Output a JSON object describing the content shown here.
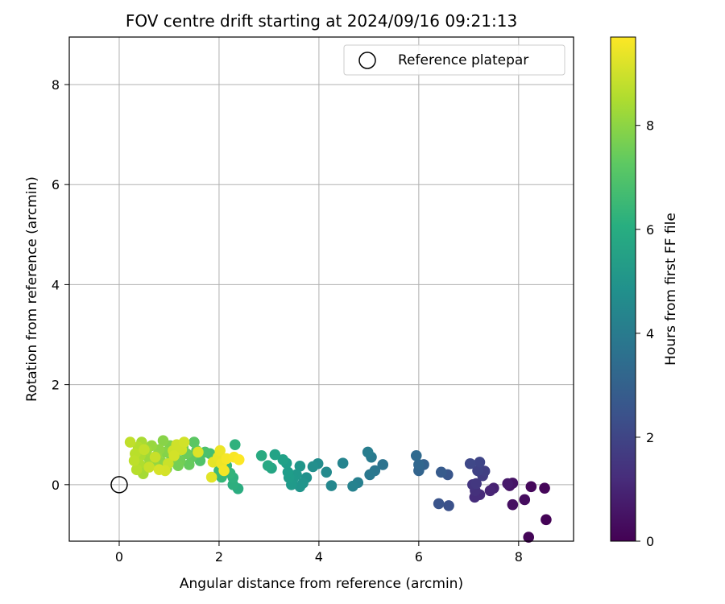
{
  "chart_data": {
    "type": "scatter",
    "title": "FOV centre drift starting at 2024/09/16 09:21:13",
    "xlabel": "Angular distance from reference (arcmin)",
    "ylabel": "Rotation from reference (arcmin)",
    "xlim": [
      -1.0,
      9.1
    ],
    "ylim": [
      -1.13,
      8.95
    ],
    "xticks": [
      0,
      2,
      4,
      6,
      8
    ],
    "yticks": [
      0,
      2,
      4,
      6,
      8
    ],
    "grid": true,
    "legend": {
      "position": "top-right",
      "entries": [
        "Reference platepar"
      ]
    },
    "reference_point": {
      "label": "Reference platepar",
      "x": 0,
      "y": 0,
      "marker": "hollow-circle"
    },
    "colorbar": {
      "label": "Hours from first FF file",
      "colormap": "viridis",
      "range": [
        0,
        9.7
      ],
      "ticks": [
        0,
        2,
        4,
        6,
        8
      ]
    },
    "points": [
      {
        "x": 8.55,
        "y": -0.7,
        "c": 0.05
      },
      {
        "x": 8.2,
        "y": -1.05,
        "c": 0.1
      },
      {
        "x": 8.52,
        "y": -0.07,
        "c": 0.15
      },
      {
        "x": 8.25,
        "y": -0.04,
        "c": 0.2
      },
      {
        "x": 8.12,
        "y": -0.3,
        "c": 0.3
      },
      {
        "x": 7.88,
        "y": -0.4,
        "c": 0.4
      },
      {
        "x": 7.88,
        "y": 0.03,
        "c": 0.5
      },
      {
        "x": 7.82,
        "y": -0.02,
        "c": 0.55
      },
      {
        "x": 7.78,
        "y": 0.02,
        "c": 0.7
      },
      {
        "x": 7.5,
        "y": -0.07,
        "c": 0.9
      },
      {
        "x": 7.43,
        "y": -0.12,
        "c": 1.0
      },
      {
        "x": 7.22,
        "y": -0.2,
        "c": 1.15
      },
      {
        "x": 7.12,
        "y": -0.25,
        "c": 1.25
      },
      {
        "x": 7.13,
        "y": -0.12,
        "c": 1.35
      },
      {
        "x": 7.08,
        "y": 0.0,
        "c": 1.5
      },
      {
        "x": 7.15,
        "y": 0.02,
        "c": 1.6
      },
      {
        "x": 7.28,
        "y": 0.18,
        "c": 1.7
      },
      {
        "x": 7.32,
        "y": 0.27,
        "c": 1.8
      },
      {
        "x": 7.18,
        "y": 0.28,
        "c": 1.9
      },
      {
        "x": 7.22,
        "y": 0.45,
        "c": 2.0
      },
      {
        "x": 7.03,
        "y": 0.42,
        "c": 2.1
      },
      {
        "x": 6.6,
        "y": -0.42,
        "c": 2.4
      },
      {
        "x": 6.4,
        "y": -0.38,
        "c": 2.5
      },
      {
        "x": 6.58,
        "y": 0.2,
        "c": 2.6
      },
      {
        "x": 6.45,
        "y": 0.25,
        "c": 2.75
      },
      {
        "x": 6.1,
        "y": 0.4,
        "c": 3.0
      },
      {
        "x": 6.0,
        "y": 0.28,
        "c": 3.1
      },
      {
        "x": 6.0,
        "y": 0.4,
        "c": 3.2
      },
      {
        "x": 5.95,
        "y": 0.58,
        "c": 3.3
      },
      {
        "x": 5.28,
        "y": 0.4,
        "c": 3.7
      },
      {
        "x": 5.12,
        "y": 0.28,
        "c": 3.8
      },
      {
        "x": 5.02,
        "y": 0.2,
        "c": 3.9
      },
      {
        "x": 5.05,
        "y": 0.55,
        "c": 4.0
      },
      {
        "x": 4.98,
        "y": 0.65,
        "c": 4.1
      },
      {
        "x": 4.78,
        "y": 0.04,
        "c": 4.2
      },
      {
        "x": 4.68,
        "y": -0.03,
        "c": 4.3
      },
      {
        "x": 4.48,
        "y": 0.43,
        "c": 4.4
      },
      {
        "x": 4.25,
        "y": -0.02,
        "c": 4.5
      },
      {
        "x": 4.15,
        "y": 0.25,
        "c": 4.6
      },
      {
        "x": 3.98,
        "y": 0.42,
        "c": 4.7
      },
      {
        "x": 3.88,
        "y": 0.36,
        "c": 4.8
      },
      {
        "x": 3.75,
        "y": 0.14,
        "c": 4.9
      },
      {
        "x": 3.68,
        "y": 0.03,
        "c": 5.0
      },
      {
        "x": 3.62,
        "y": -0.04,
        "c": 5.05
      },
      {
        "x": 3.62,
        "y": 0.37,
        "c": 5.1
      },
      {
        "x": 3.55,
        "y": 0.2,
        "c": 5.15
      },
      {
        "x": 3.48,
        "y": 0.12,
        "c": 5.2
      },
      {
        "x": 3.45,
        "y": 0.0,
        "c": 5.25
      },
      {
        "x": 3.4,
        "y": 0.14,
        "c": 5.3
      },
      {
        "x": 3.38,
        "y": 0.25,
        "c": 5.35
      },
      {
        "x": 3.35,
        "y": 0.43,
        "c": 5.4
      },
      {
        "x": 3.28,
        "y": 0.5,
        "c": 5.5
      },
      {
        "x": 3.12,
        "y": 0.6,
        "c": 5.6
      },
      {
        "x": 3.05,
        "y": 0.33,
        "c": 5.7
      },
      {
        "x": 2.98,
        "y": 0.38,
        "c": 5.8
      },
      {
        "x": 2.85,
        "y": 0.58,
        "c": 5.9
      },
      {
        "x": 2.38,
        "y": -0.08,
        "c": 6.0
      },
      {
        "x": 2.28,
        "y": 0.0,
        "c": 6.1
      },
      {
        "x": 2.28,
        "y": 0.14,
        "c": 6.15
      },
      {
        "x": 2.32,
        "y": 0.8,
        "c": 6.2
      },
      {
        "x": 2.22,
        "y": 0.23,
        "c": 6.3
      },
      {
        "x": 2.15,
        "y": 0.38,
        "c": 6.4
      },
      {
        "x": 2.05,
        "y": 0.15,
        "c": 6.5
      },
      {
        "x": 2.0,
        "y": 0.28,
        "c": 6.6
      },
      {
        "x": 1.92,
        "y": 0.5,
        "c": 6.7
      },
      {
        "x": 1.82,
        "y": 0.62,
        "c": 6.8
      },
      {
        "x": 1.72,
        "y": 0.65,
        "c": 6.9
      },
      {
        "x": 1.62,
        "y": 0.48,
        "c": 7.0
      },
      {
        "x": 1.55,
        "y": 0.68,
        "c": 7.1
      },
      {
        "x": 1.5,
        "y": 0.85,
        "c": 7.2
      },
      {
        "x": 1.45,
        "y": 0.55,
        "c": 7.3
      },
      {
        "x": 1.4,
        "y": 0.4,
        "c": 7.4
      },
      {
        "x": 1.35,
        "y": 0.62,
        "c": 7.5
      },
      {
        "x": 1.28,
        "y": 0.75,
        "c": 7.55
      },
      {
        "x": 1.22,
        "y": 0.48,
        "c": 7.6
      },
      {
        "x": 1.18,
        "y": 0.38,
        "c": 7.65
      },
      {
        "x": 1.12,
        "y": 0.62,
        "c": 7.7
      },
      {
        "x": 1.05,
        "y": 0.52,
        "c": 7.75
      },
      {
        "x": 1.02,
        "y": 0.78,
        "c": 7.8
      },
      {
        "x": 0.95,
        "y": 0.32,
        "c": 7.85
      },
      {
        "x": 0.92,
        "y": 0.65,
        "c": 7.9
      },
      {
        "x": 0.88,
        "y": 0.88,
        "c": 7.95
      },
      {
        "x": 0.85,
        "y": 0.45,
        "c": 8.0
      },
      {
        "x": 0.8,
        "y": 0.7,
        "c": 8.05
      },
      {
        "x": 0.75,
        "y": 0.58,
        "c": 8.1
      },
      {
        "x": 0.7,
        "y": 0.4,
        "c": 8.15
      },
      {
        "x": 0.65,
        "y": 0.78,
        "c": 8.2
      },
      {
        "x": 0.6,
        "y": 0.52,
        "c": 8.25
      },
      {
        "x": 0.55,
        "y": 0.68,
        "c": 8.3
      },
      {
        "x": 0.52,
        "y": 0.35,
        "c": 8.35
      },
      {
        "x": 0.48,
        "y": 0.22,
        "c": 8.4
      },
      {
        "x": 0.45,
        "y": 0.85,
        "c": 8.45
      },
      {
        "x": 0.42,
        "y": 0.58,
        "c": 8.5
      },
      {
        "x": 0.4,
        "y": 0.42,
        "c": 8.55
      },
      {
        "x": 0.38,
        "y": 0.75,
        "c": 8.6
      },
      {
        "x": 0.35,
        "y": 0.3,
        "c": 8.65
      },
      {
        "x": 0.32,
        "y": 0.62,
        "c": 8.7
      },
      {
        "x": 0.3,
        "y": 0.48,
        "c": 8.75
      },
      {
        "x": 0.22,
        "y": 0.85,
        "c": 8.8
      },
      {
        "x": 0.5,
        "y": 0.7,
        "c": 8.85
      },
      {
        "x": 0.6,
        "y": 0.35,
        "c": 8.9
      },
      {
        "x": 0.72,
        "y": 0.55,
        "c": 8.92
      },
      {
        "x": 0.98,
        "y": 0.42,
        "c": 8.95
      },
      {
        "x": 1.08,
        "y": 0.68,
        "c": 8.98
      },
      {
        "x": 1.15,
        "y": 0.8,
        "c": 9.0
      },
      {
        "x": 1.25,
        "y": 0.7,
        "c": 9.02
      },
      {
        "x": 1.3,
        "y": 0.85,
        "c": 9.05
      },
      {
        "x": 1.1,
        "y": 0.58,
        "c": 9.08
      },
      {
        "x": 0.92,
        "y": 0.28,
        "c": 9.1
      },
      {
        "x": 0.8,
        "y": 0.3,
        "c": 9.12
      },
      {
        "x": 1.58,
        "y": 0.65,
        "c": 9.2
      },
      {
        "x": 1.85,
        "y": 0.15,
        "c": 9.3
      },
      {
        "x": 1.88,
        "y": 0.45,
        "c": 9.35
      },
      {
        "x": 1.98,
        "y": 0.55,
        "c": 9.4
      },
      {
        "x": 2.02,
        "y": 0.68,
        "c": 9.45
      },
      {
        "x": 2.05,
        "y": 0.42,
        "c": 9.5
      },
      {
        "x": 2.1,
        "y": 0.28,
        "c": 9.55
      },
      {
        "x": 2.15,
        "y": 0.52,
        "c": 9.58
      },
      {
        "x": 2.3,
        "y": 0.55,
        "c": 9.62
      },
      {
        "x": 2.4,
        "y": 0.5,
        "c": 9.68
      }
    ]
  }
}
